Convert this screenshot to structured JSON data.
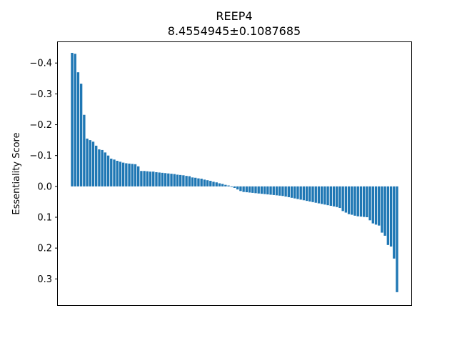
{
  "chart_data": {
    "type": "bar",
    "title": "REEP4",
    "subtitle": "8.4554945±0.1087685",
    "xlabel": "",
    "ylabel": "Essentiality Score",
    "y_inverted": true,
    "ylim": [
      0.385,
      -0.47
    ],
    "yticks": [
      -0.4,
      -0.3,
      -0.2,
      -0.1,
      0.0,
      0.1,
      0.2,
      0.3
    ],
    "ytick_labels": [
      "−0.4",
      "−0.3",
      "−0.2",
      "−0.1",
      "0.0",
      "0.1",
      "0.2",
      "0.3"
    ],
    "grid": false,
    "bar_color": "#1f77b4",
    "values": [
      -0.433,
      -0.43,
      -0.37,
      -0.333,
      -0.232,
      -0.155,
      -0.15,
      -0.145,
      -0.132,
      -0.12,
      -0.118,
      -0.11,
      -0.1,
      -0.09,
      -0.087,
      -0.083,
      -0.08,
      -0.077,
      -0.075,
      -0.074,
      -0.073,
      -0.072,
      -0.065,
      -0.05,
      -0.05,
      -0.049,
      -0.048,
      -0.048,
      -0.046,
      -0.045,
      -0.044,
      -0.043,
      -0.042,
      -0.041,
      -0.04,
      -0.038,
      -0.037,
      -0.036,
      -0.034,
      -0.033,
      -0.029,
      -0.028,
      -0.026,
      -0.025,
      -0.022,
      -0.02,
      -0.018,
      -0.015,
      -0.013,
      -0.01,
      -0.008,
      -0.005,
      -0.003,
      0.002,
      0.005,
      0.01,
      0.015,
      0.018,
      0.019,
      0.02,
      0.021,
      0.022,
      0.023,
      0.024,
      0.025,
      0.026,
      0.027,
      0.028,
      0.029,
      0.03,
      0.031,
      0.033,
      0.035,
      0.037,
      0.039,
      0.041,
      0.043,
      0.045,
      0.047,
      0.049,
      0.051,
      0.053,
      0.055,
      0.057,
      0.059,
      0.061,
      0.063,
      0.065,
      0.067,
      0.07,
      0.08,
      0.085,
      0.09,
      0.092,
      0.095,
      0.097,
      0.098,
      0.099,
      0.1,
      0.11,
      0.12,
      0.124,
      0.127,
      0.15,
      0.16,
      0.19,
      0.195,
      0.234,
      0.343
    ]
  }
}
